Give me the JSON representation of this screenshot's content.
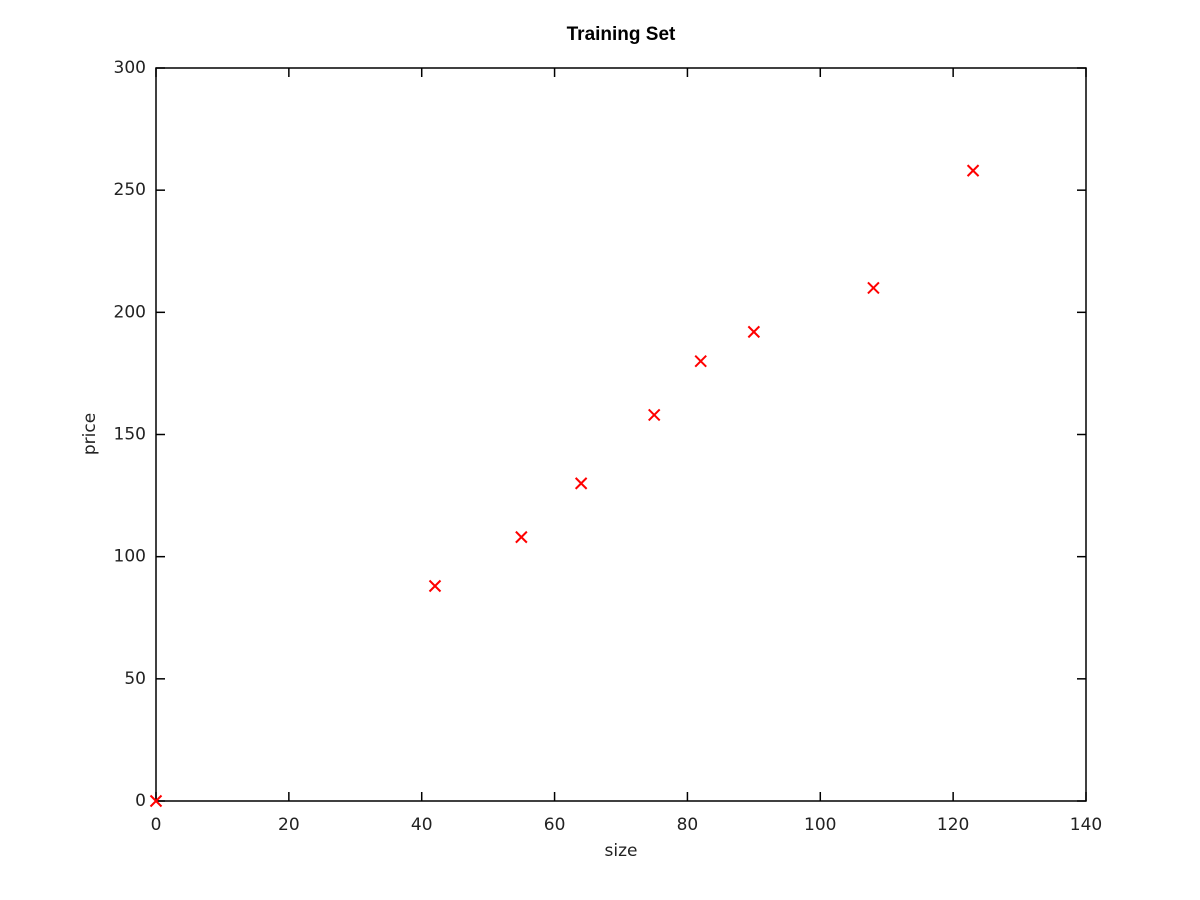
{
  "chart_data": {
    "type": "scatter",
    "title": "Training Set",
    "x_label": "size",
    "y_label": "price",
    "series": [
      {
        "color": "#ff0000",
        "marker": "x",
        "x": [
          0,
          42,
          55,
          64,
          75,
          82,
          90,
          108,
          123
        ],
        "values": [
          0,
          88,
          108,
          130,
          158,
          180,
          192,
          210,
          258
        ]
      }
    ],
    "xlim": [
      0,
      140
    ],
    "xticks": [
      0,
      20,
      40,
      60,
      80,
      100,
      120,
      140
    ],
    "ylim": [
      0,
      300
    ],
    "yticks": [
      0,
      50,
      100,
      150,
      200,
      250,
      300
    ],
    "grid": false,
    "box": true
  }
}
